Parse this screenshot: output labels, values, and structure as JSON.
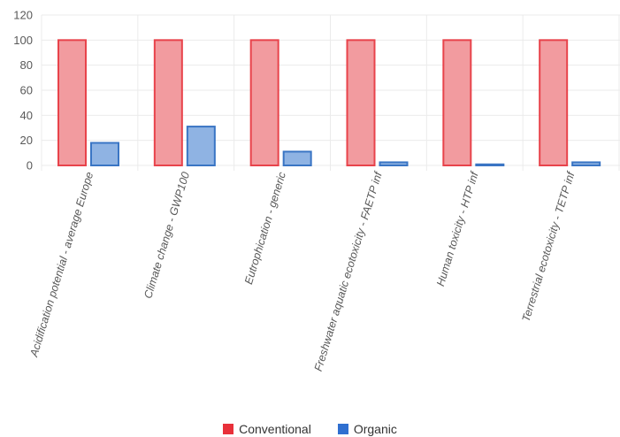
{
  "chart_data": {
    "type": "bar",
    "title": "",
    "xlabel": "",
    "ylabel": "",
    "ylim": [
      0,
      120
    ],
    "yticks": [
      0,
      20,
      40,
      60,
      80,
      100,
      120
    ],
    "grid": true,
    "legend_position": "bottom",
    "categories": [
      "Acidification potential - average Europe",
      "Climate change - GWP100",
      "Eutrophication - generic",
      "Freshwater aquatic ecotoxicity - FAETP inf",
      "Human toxicity - HTP inf",
      "Terrestrial ecotoxicity - TETP inf"
    ],
    "series": [
      {
        "name": "Conventional",
        "values": [
          100,
          100,
          100,
          100,
          100,
          100
        ],
        "fill": "#f29b9f",
        "stroke": "#e8434b",
        "legend_color": "#e8303a"
      },
      {
        "name": "Organic",
        "values": [
          18,
          31,
          11,
          2.5,
          0.8,
          2.5
        ],
        "fill": "#8fb3e3",
        "stroke": "#3a75c4",
        "legend_color": "#2f6fd0"
      }
    ]
  }
}
